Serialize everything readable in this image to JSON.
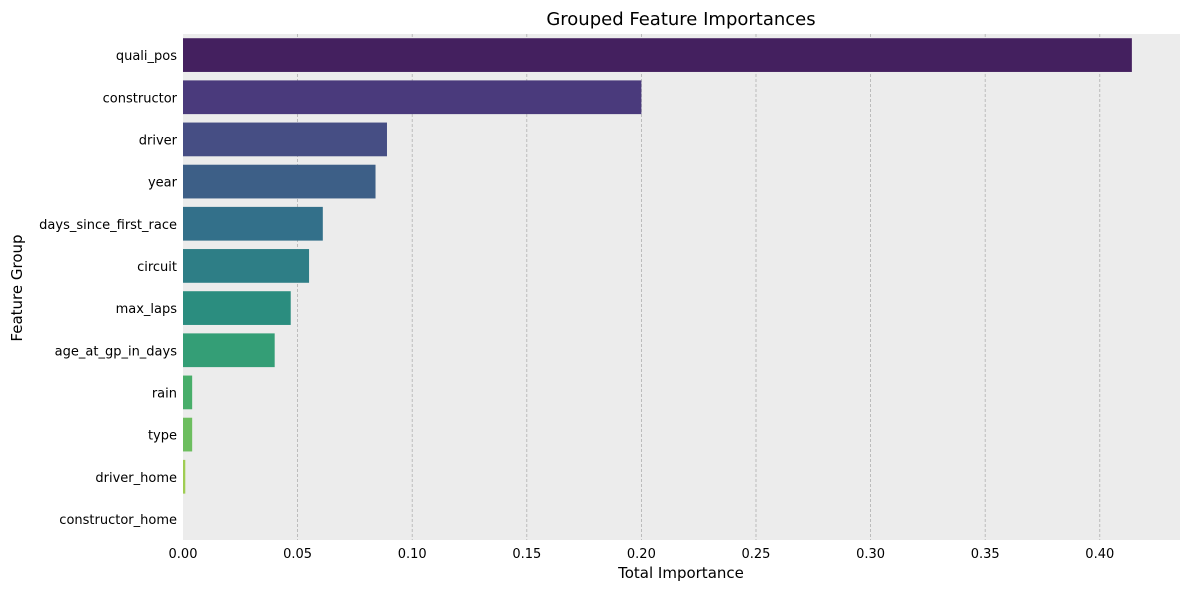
{
  "chart_data": {
    "type": "bar",
    "orientation": "horizontal",
    "title": "Grouped Feature Importances",
    "xlabel": "Total Importance",
    "ylabel": "Feature Group",
    "xlim": [
      0,
      0.435
    ],
    "xticks": [
      0.0,
      0.05,
      0.1,
      0.15,
      0.2,
      0.25,
      0.3,
      0.35,
      0.4
    ],
    "xtick_labels": [
      "0.00",
      "0.05",
      "0.10",
      "0.15",
      "0.20",
      "0.25",
      "0.30",
      "0.35",
      "0.40"
    ],
    "grid": "vertical dashed",
    "background": "#ececec",
    "categories": [
      "quali_pos",
      "constructor",
      "driver",
      "year",
      "days_since_first_race",
      "circuit",
      "max_laps",
      "age_at_gp_in_days",
      "rain",
      "type",
      "driver_home",
      "constructor_home"
    ],
    "values": [
      0.414,
      0.2,
      0.089,
      0.084,
      0.061,
      0.055,
      0.047,
      0.04,
      0.004,
      0.004,
      0.001,
      0.0
    ],
    "colors": [
      "#44205f",
      "#4a3a7c",
      "#464e84",
      "#3d5f87",
      "#33708a",
      "#2e7e86",
      "#2b8d7f",
      "#349e76",
      "#48ae6a",
      "#6dbe5f",
      "#9fcd53",
      "#d5dc4b"
    ]
  }
}
